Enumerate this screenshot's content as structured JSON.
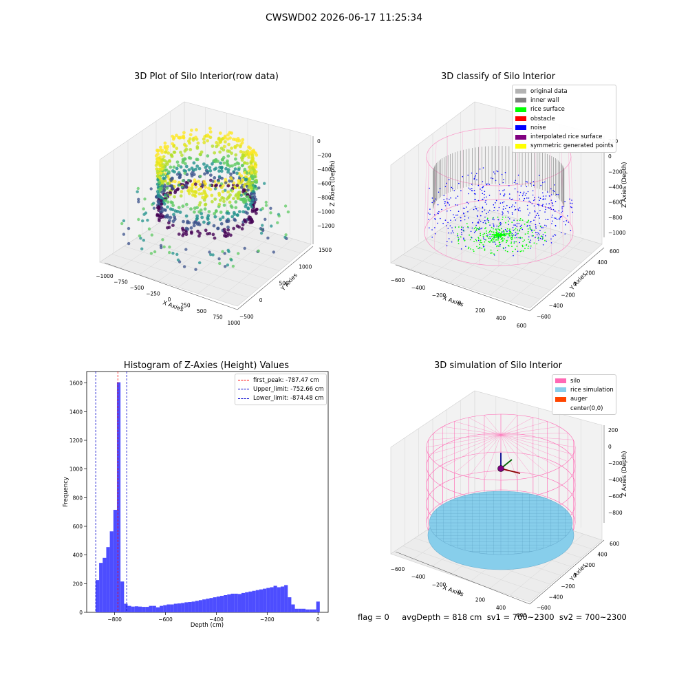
{
  "suptitle": "CWSWD02 2026-06-17 11:25:34",
  "status_line": "flag = 0     avgDepth = 818 cm  sv1 = 700~2300  sv2 = 700~2300",
  "colors": {
    "histogram": "#4d4dff",
    "first_peak": "#ff0000",
    "limits": "#0000cc",
    "original_data": "#b3b3b3",
    "inner_wall": "#808080",
    "rice_surface": "#00ff00",
    "obstacle": "#ff0000",
    "noise": "#0000ff",
    "interpolated_rice_surface": "#800080",
    "symmetric_generated_points": "#ffff00",
    "silo": "#ff69b4",
    "rice_simulation": "#87ceeb",
    "auger": "#ff4500"
  },
  "chart_data": [
    {
      "type": "scatter",
      "subtype": "3d",
      "title": "3D Plot of Silo Interior(row data)",
      "xlabel": "X Axies",
      "ylabel": "Y Axies",
      "zlabel": "Z Axies (Depth)",
      "xticks": [
        "−1000",
        "−750",
        "−500",
        "−250",
        "0",
        "250",
        "500",
        "750",
        "1000"
      ],
      "yticks": [
        "−500",
        "0",
        "500",
        "1000",
        "1500"
      ],
      "zticks": [
        "0",
        "−200",
        "−400",
        "−600",
        "−800",
        "−1000",
        "−1200"
      ],
      "xlim": [
        -1000,
        1000
      ],
      "ylim": [
        -500,
        1500
      ],
      "zlim": [
        -1300,
        0
      ],
      "colormap": "viridis",
      "grid": true
    },
    {
      "type": "scatter",
      "subtype": "3d",
      "title": "3D classify of Silo Interior",
      "xlabel": "X Axies",
      "ylabel": "Y Axies",
      "zlabel": "Z Axies (Depth)",
      "xticks": [
        "−600",
        "−400",
        "−200",
        "0",
        "200",
        "400",
        "600"
      ],
      "yticks": [
        "−600",
        "−400",
        "−200",
        "0",
        "200",
        "400",
        "600"
      ],
      "zticks": [
        "200",
        "0",
        "−200",
        "−400",
        "−600",
        "−800",
        "−1000"
      ],
      "xlim": [
        -700,
        700
      ],
      "ylim": [
        -700,
        700
      ],
      "zlim": [
        -1000,
        250
      ],
      "legend_position": "top-right",
      "legend": [
        "original data",
        "inner wall",
        "rice surface",
        "obstacle",
        "noise",
        "interpolated rice surface",
        "symmetric generated points"
      ],
      "grid": true
    },
    {
      "type": "bar",
      "subtype": "histogram",
      "title": "Histogram of Z-Axies (Height) Values",
      "xlabel": "Depth (cm)",
      "ylabel": "Frequency",
      "xlim": [
        -910,
        40
      ],
      "ylim": [
        0,
        1680
      ],
      "xticks": [
        "−800",
        "−600",
        "−400",
        "−200",
        "0"
      ],
      "yticks": [
        "0",
        "200",
        "400",
        "600",
        "800",
        "1000",
        "1200",
        "1400",
        "1600"
      ],
      "bin_width": 14,
      "bin_starts": [
        -875,
        -861,
        -847,
        -833,
        -819,
        -805,
        -791,
        -777,
        -763,
        -749,
        -735,
        -721,
        -707,
        -693,
        -679,
        -665,
        -651,
        -637,
        -623,
        -609,
        -595,
        -581,
        -567,
        -553,
        -539,
        -525,
        -511,
        -497,
        -483,
        -469,
        -455,
        -441,
        -427,
        -413,
        -399,
        -385,
        -371,
        -357,
        -343,
        -329,
        -315,
        -301,
        -287,
        -273,
        -259,
        -245,
        -231,
        -217,
        -203,
        -189,
        -175,
        -161,
        -147,
        -133,
        -119,
        -105,
        -91,
        -77,
        -63,
        -49,
        -35,
        -21,
        -7
      ],
      "values": [
        225,
        345,
        380,
        455,
        565,
        715,
        1605,
        215,
        60,
        45,
        40,
        42,
        40,
        38,
        38,
        45,
        45,
        35,
        45,
        50,
        55,
        55,
        60,
        62,
        65,
        70,
        72,
        75,
        80,
        85,
        90,
        95,
        100,
        105,
        110,
        115,
        120,
        125,
        130,
        130,
        128,
        135,
        140,
        145,
        150,
        155,
        160,
        165,
        170,
        175,
        185,
        175,
        180,
        190,
        105,
        55,
        25,
        25,
        25,
        20,
        20,
        20,
        75
      ],
      "vlines": [
        {
          "label": "first_peak: -787.47 cm",
          "x": -787.47,
          "color": "#ff0000"
        },
        {
          "label": "Upper_limit: -752.66 cm",
          "x": -752.66,
          "color": "#0000cc"
        },
        {
          "label": "Lower_limit: -874.48 cm",
          "x": -874.48,
          "color": "#0000cc"
        }
      ],
      "legend_position": "top-right",
      "grid": false
    },
    {
      "type": "scatter",
      "subtype": "3d",
      "title": "3D simulation of Silo Interior",
      "xlabel": "X Axies",
      "ylabel": "Y Axies",
      "zlabel": "Z Axies (Depth)",
      "xticks": [
        "−600",
        "−400",
        "−200",
        "0",
        "200",
        "400",
        "600"
      ],
      "yticks": [
        "−600",
        "−400",
        "−200",
        "0",
        "200",
        "400",
        "600"
      ],
      "zticks": [
        "200",
        "0",
        "−200",
        "−400",
        "−600",
        "−800"
      ],
      "xlim": [
        -700,
        700
      ],
      "ylim": [
        -700,
        700
      ],
      "zlim": [
        -900,
        300
      ],
      "legend_position": "top-right",
      "legend": [
        "silo",
        "rice simulation",
        "auger",
        "center(0,0)"
      ],
      "grid": true
    }
  ]
}
